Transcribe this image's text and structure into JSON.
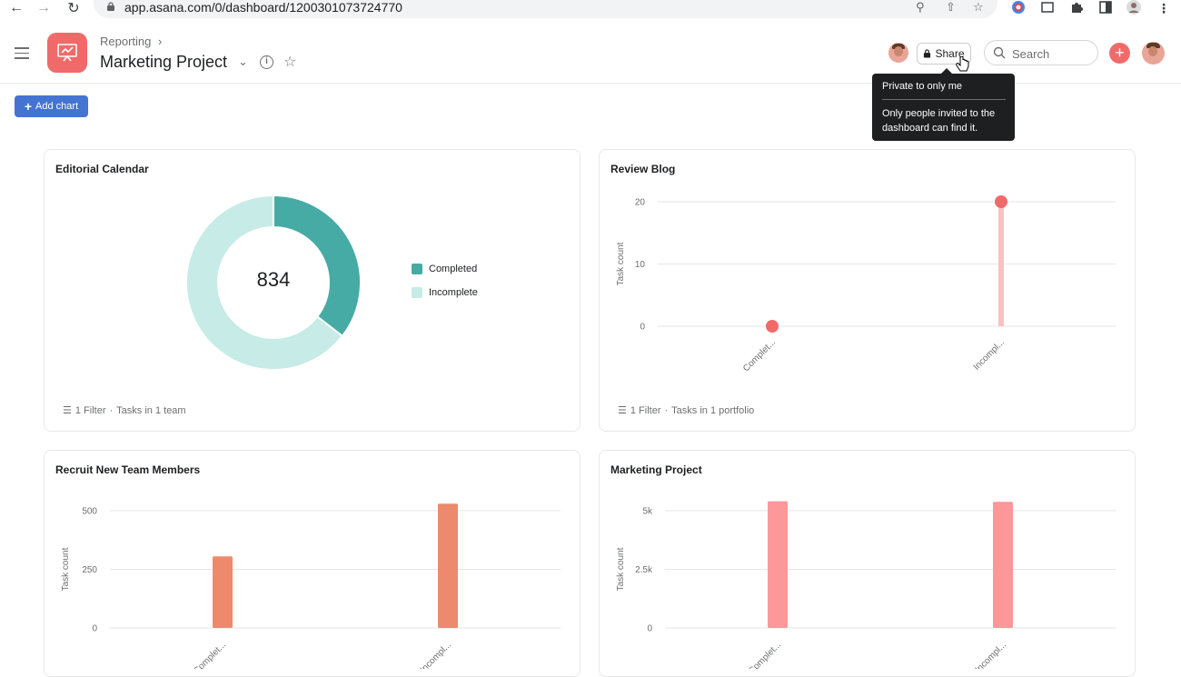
{
  "browser": {
    "url": "app.asana.com/0/dashboard/1200301073724770",
    "back_icon": "arrow-left-icon",
    "forward_icon": "arrow-right-icon",
    "reload_icon": "reload-icon"
  },
  "header": {
    "breadcrumb": "Reporting",
    "title": "Marketing Project",
    "share_label": "Share",
    "search_placeholder": "Search"
  },
  "tooltip": {
    "title": "Private to only me",
    "body": "Only people invited to the dashboard can find it."
  },
  "toolbar": {
    "add_chart_label": "Add chart"
  },
  "cards": {
    "editorial": {
      "title": "Editorial Calendar",
      "total": "834",
      "footer_filter": "1 Filter",
      "footer_scope": "Tasks in 1 team"
    },
    "review": {
      "title": "Review Blog",
      "footer_filter": "1 Filter",
      "footer_scope": "Tasks in 1 portfolio"
    },
    "recruit": {
      "title": "Recruit New Team Members"
    },
    "marketing": {
      "title": "Marketing Project"
    }
  },
  "chart_data": [
    {
      "type": "pie",
      "title": "Editorial Calendar",
      "categories": [
        "Completed",
        "Incomplete"
      ],
      "values": [
        296,
        538
      ],
      "colors": [
        "#46aba4",
        "#c7ebe6"
      ],
      "legend": "right"
    },
    {
      "type": "scatter",
      "title": "Review Blog",
      "categories": [
        "Complet...",
        "Incompl..."
      ],
      "values": [
        0,
        20
      ],
      "ylabel": "Task count",
      "yticks": [
        "0",
        "10",
        "20"
      ],
      "ylim": [
        0,
        20
      ],
      "color": "#f06a6a"
    },
    {
      "type": "bar",
      "title": "Recruit New Team Members",
      "categories": [
        "Complet...",
        "Incompl..."
      ],
      "values": [
        305,
        530
      ],
      "ylabel": "Task count",
      "yticks": [
        "0",
        "250",
        "500"
      ],
      "ylim": [
        0,
        500
      ],
      "color": "#ed8a6d"
    },
    {
      "type": "bar",
      "title": "Marketing Project",
      "categories": [
        "Complet...",
        "Incompl..."
      ],
      "values": [
        5400,
        5380
      ],
      "ylabel": "Task count",
      "yticks": [
        "0",
        "2.5k",
        "5k"
      ],
      "ylim": [
        0,
        5000
      ],
      "color": "#fc979a"
    }
  ]
}
